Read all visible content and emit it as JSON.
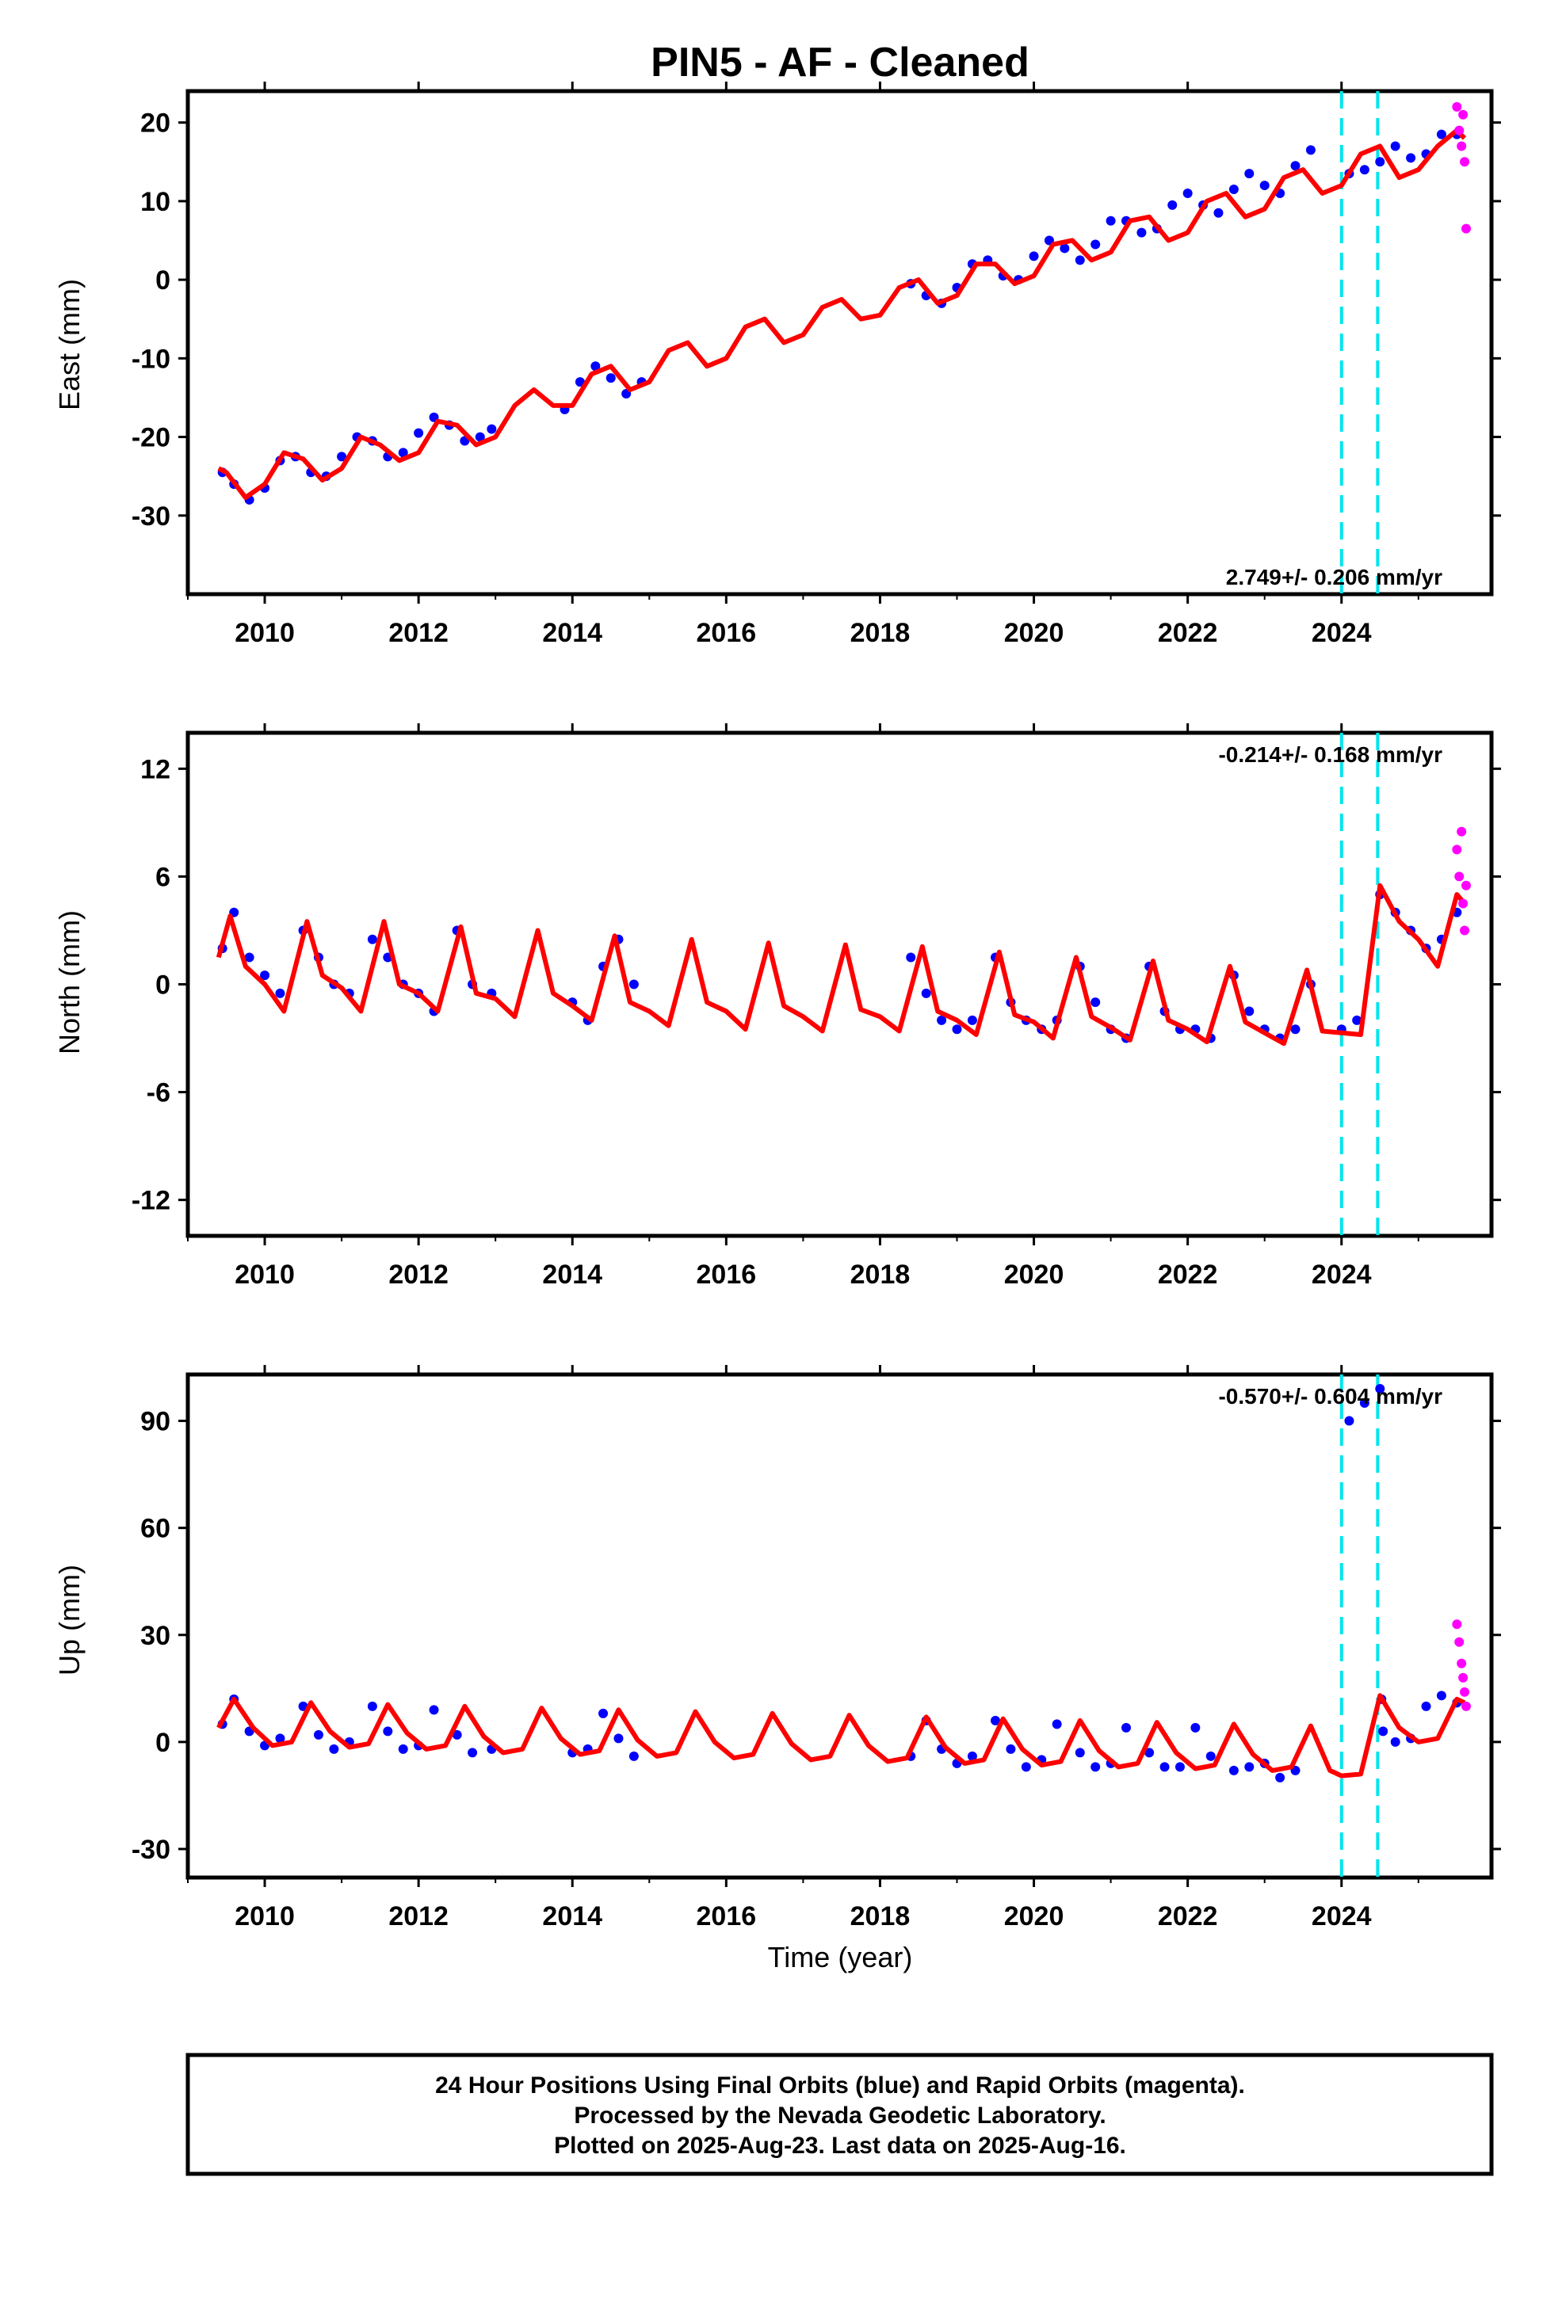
{
  "title": "PIN5  - AF - Cleaned",
  "footer": {
    "line1": "24 Hour Positions Using Final Orbits (blue) and Rapid Orbits (magenta).",
    "line2": "Processed by the Nevada Geodetic Laboratory.",
    "line3": "Plotted on 2025-Aug-23. Last data on 2025-Aug-16."
  },
  "colors": {
    "final": "#0000ff",
    "rapid": "#ff00ff",
    "model": "#ff0000",
    "event": "#00e5ee"
  },
  "chart_data": [
    {
      "type": "scatter",
      "ylabel": "East (mm)",
      "xlabel": "",
      "xlim": [
        2009.0,
        2025.95
      ],
      "ylim": [
        -40,
        24
      ],
      "xticks": [
        "2010",
        "2012",
        "2014",
        "2016",
        "2018",
        "2020",
        "2022",
        "2024"
      ],
      "yticks": [
        "-30",
        "-20",
        "-10",
        "0",
        "10",
        "20"
      ],
      "rate": "2.749+/- 0.206 mm/yr",
      "events": [
        2024.0,
        2024.47
      ],
      "model": {
        "x": [
          2009.4,
          2009.5,
          2009.75,
          2010.0,
          2010.25,
          2010.5,
          2010.75,
          2011.0,
          2011.25,
          2011.5,
          2011.75,
          2012.0,
          2012.25,
          2012.5,
          2012.75,
          2013.0,
          2013.25,
          2013.5,
          2013.75,
          2014.0,
          2014.25,
          2014.5,
          2014.75,
          2015.0,
          2015.25,
          2015.5,
          2015.75,
          2016.0,
          2016.25,
          2016.5,
          2016.75,
          2017.0,
          2017.25,
          2017.5,
          2017.75,
          2018.0,
          2018.25,
          2018.5,
          2018.75,
          2019.0,
          2019.25,
          2019.5,
          2019.75,
          2020.0,
          2020.25,
          2020.5,
          2020.75,
          2021.0,
          2021.25,
          2021.5,
          2021.75,
          2022.0,
          2022.25,
          2022.5,
          2022.75,
          2023.0,
          2023.25,
          2023.5,
          2023.75,
          2024.0,
          2024.25,
          2024.5,
          2024.75,
          2025.0,
          2025.25,
          2025.5,
          2025.6
        ],
        "y": [
          -24.0,
          -24.5,
          -27.7,
          -26.0,
          -22.0,
          -22.8,
          -25.5,
          -24.0,
          -20.0,
          -21.0,
          -23.0,
          -22.0,
          -18.0,
          -18.5,
          -21.0,
          -20.0,
          -16.0,
          -14.0,
          -16.0,
          -16.0,
          -12.0,
          -11.0,
          -14.0,
          -13.0,
          -9.0,
          -8.0,
          -11.0,
          -10.0,
          -6.0,
          -5.0,
          -8.0,
          -7.0,
          -3.5,
          -2.5,
          -5.0,
          -4.5,
          -1.0,
          0.0,
          -3.0,
          -2.0,
          2.0,
          2.0,
          -0.5,
          0.5,
          4.5,
          5.0,
          2.5,
          3.5,
          7.5,
          8.0,
          5.0,
          6.0,
          10.0,
          11.0,
          8.0,
          9.0,
          13.0,
          14.0,
          11.0,
          12.0,
          16.0,
          17.0,
          13.0,
          14.0,
          17.0,
          19.0,
          18.0
        ]
      },
      "final": {
        "x": [
          2009.45,
          2009.6,
          2009.8,
          2010.0,
          2010.2,
          2010.4,
          2010.6,
          2010.8,
          2011.0,
          2011.2,
          2011.4,
          2011.6,
          2011.8,
          2012.0,
          2012.2,
          2012.4,
          2012.6,
          2012.8,
          2012.95,
          2013.9,
          2014.1,
          2014.3,
          2014.5,
          2014.7,
          2014.9,
          2018.4,
          2018.6,
          2018.8,
          2019.0,
          2019.2,
          2019.4,
          2019.6,
          2019.8,
          2020.0,
          2020.2,
          2020.4,
          2020.6,
          2020.8,
          2021.0,
          2021.2,
          2021.4,
          2021.6,
          2021.8,
          2022.0,
          2022.2,
          2022.4,
          2022.6,
          2022.8,
          2023.0,
          2023.2,
          2023.4,
          2023.6,
          2024.1,
          2024.3,
          2024.5,
          2024.7,
          2024.9,
          2025.1,
          2025.3,
          2025.5
        ],
        "y": [
          -24.5,
          -26.0,
          -28.0,
          -26.5,
          -23.0,
          -22.5,
          -24.5,
          -25.0,
          -22.5,
          -20.0,
          -20.5,
          -22.5,
          -22.0,
          -19.5,
          -17.5,
          -18.5,
          -20.5,
          -20.0,
          -19.0,
          -16.5,
          -13.0,
          -11.0,
          -12.5,
          -14.5,
          -13.0,
          -0.5,
          -2.0,
          -3.0,
          -1.0,
          2.0,
          2.5,
          0.5,
          0.0,
          3.0,
          5.0,
          4.0,
          2.5,
          4.5,
          7.5,
          7.5,
          6.0,
          6.5,
          9.5,
          11.0,
          9.5,
          8.5,
          11.5,
          13.5,
          12.0,
          11.0,
          14.5,
          16.5,
          13.5,
          14.0,
          15.0,
          17.0,
          15.5,
          16.0,
          18.5,
          18.5
        ]
      },
      "rapid": {
        "x": [
          2025.5,
          2025.53,
          2025.56,
          2025.58,
          2025.6,
          2025.62
        ],
        "y": [
          22.0,
          19.0,
          17.0,
          21.0,
          15.0,
          6.5
        ]
      }
    },
    {
      "type": "scatter",
      "ylabel": "North (mm)",
      "xlabel": "",
      "xlim": [
        2009.0,
        2025.95
      ],
      "ylim": [
        -14,
        14
      ],
      "xticks": [
        "2010",
        "2012",
        "2014",
        "2016",
        "2018",
        "2020",
        "2022",
        "2024"
      ],
      "yticks": [
        "-12",
        "-6",
        "0",
        "6",
        "12"
      ],
      "rate": "-0.214+/- 0.168 mm/yr",
      "events": [
        2024.0,
        2024.47
      ],
      "model": {
        "x": [
          2009.4,
          2009.55,
          2009.75,
          2010.0,
          2010.25,
          2010.55,
          2010.75,
          2011.0,
          2011.25,
          2011.55,
          2011.75,
          2012.0,
          2012.25,
          2012.55,
          2012.75,
          2013.0,
          2013.25,
          2013.55,
          2013.75,
          2014.0,
          2014.25,
          2014.55,
          2014.75,
          2015.0,
          2015.25,
          2015.55,
          2015.75,
          2016.0,
          2016.25,
          2016.55,
          2016.75,
          2017.0,
          2017.25,
          2017.55,
          2017.75,
          2018.0,
          2018.25,
          2018.55,
          2018.75,
          2019.0,
          2019.25,
          2019.55,
          2019.75,
          2020.0,
          2020.25,
          2020.55,
          2020.75,
          2021.0,
          2021.25,
          2021.55,
          2021.75,
          2022.0,
          2022.25,
          2022.55,
          2022.75,
          2023.0,
          2023.25,
          2023.55,
          2023.75,
          2024.0,
          2024.25,
          2024.5,
          2024.75,
          2025.0,
          2025.25,
          2025.5,
          2025.6
        ],
        "y": [
          1.5,
          3.8,
          1.0,
          0.0,
          -1.5,
          3.5,
          0.5,
          -0.2,
          -1.5,
          3.5,
          0.0,
          -0.5,
          -1.5,
          3.2,
          -0.5,
          -0.8,
          -1.8,
          3.0,
          -0.5,
          -1.2,
          -2.0,
          2.7,
          -1.0,
          -1.5,
          -2.3,
          2.5,
          -1.0,
          -1.5,
          -2.5,
          2.3,
          -1.2,
          -1.8,
          -2.6,
          2.2,
          -1.4,
          -1.8,
          -2.6,
          2.1,
          -1.5,
          -2.0,
          -2.8,
          1.8,
          -1.7,
          -2.1,
          -3.0,
          1.5,
          -1.8,
          -2.4,
          -3.1,
          1.3,
          -2.0,
          -2.5,
          -3.2,
          1.0,
          -2.1,
          -2.7,
          -3.3,
          0.8,
          -2.6,
          -2.7,
          -2.8,
          5.5,
          3.5,
          2.5,
          1.0,
          5.0,
          4.5
        ]
      },
      "final": {
        "x": [
          2009.45,
          2009.6,
          2009.8,
          2010.0,
          2010.2,
          2010.5,
          2010.7,
          2010.9,
          2011.1,
          2011.4,
          2011.6,
          2011.8,
          2012.0,
          2012.2,
          2012.5,
          2012.7,
          2012.95,
          2014.0,
          2014.2,
          2014.4,
          2014.6,
          2014.8,
          2018.4,
          2018.6,
          2018.8,
          2019.0,
          2019.2,
          2019.5,
          2019.7,
          2019.9,
          2020.1,
          2020.3,
          2020.6,
          2020.8,
          2021.0,
          2021.2,
          2021.5,
          2021.7,
          2021.9,
          2022.1,
          2022.3,
          2022.6,
          2022.8,
          2023.0,
          2023.2,
          2023.4,
          2023.6,
          2024.0,
          2024.2,
          2024.5,
          2024.7,
          2024.9,
          2025.1,
          2025.3,
          2025.5
        ],
        "y": [
          2.0,
          4.0,
          1.5,
          0.5,
          -0.5,
          3.0,
          1.5,
          0.0,
          -0.5,
          2.5,
          1.5,
          0.0,
          -0.5,
          -1.5,
          3.0,
          0.0,
          -0.5,
          -1.0,
          -2.0,
          1.0,
          2.5,
          0.0,
          1.5,
          -0.5,
          -2.0,
          -2.5,
          -2.0,
          1.5,
          -1.0,
          -2.0,
          -2.5,
          -2.0,
          1.0,
          -1.0,
          -2.5,
          -3.0,
          1.0,
          -1.5,
          -2.5,
          -2.5,
          -3.0,
          0.5,
          -1.5,
          -2.5,
          -3.0,
          -2.5,
          0.0,
          -2.5,
          -2.0,
          5.0,
          4.0,
          3.0,
          2.0,
          2.5,
          4.0
        ]
      },
      "rapid": {
        "x": [
          2025.5,
          2025.53,
          2025.56,
          2025.58,
          2025.6,
          2025.62
        ],
        "y": [
          7.5,
          6.0,
          8.5,
          4.5,
          3.0,
          5.5
        ]
      }
    },
    {
      "type": "scatter",
      "ylabel": "Up (mm)",
      "xlabel": "Time (year)",
      "xlim": [
        2009.0,
        2025.95
      ],
      "ylim": [
        -38,
        103
      ],
      "xticks": [
        "2010",
        "2012",
        "2014",
        "2016",
        "2018",
        "2020",
        "2022",
        "2024"
      ],
      "yticks": [
        "-30",
        "0",
        "30",
        "60",
        "90"
      ],
      "rate": "-0.570+/- 0.604 mm/yr",
      "events": [
        2024.0,
        2024.47
      ],
      "model": {
        "x": [
          2009.4,
          2009.6,
          2009.85,
          2010.1,
          2010.35,
          2010.6,
          2010.85,
          2011.1,
          2011.35,
          2011.6,
          2011.85,
          2012.1,
          2012.35,
          2012.6,
          2012.85,
          2013.1,
          2013.35,
          2013.6,
          2013.85,
          2014.1,
          2014.35,
          2014.6,
          2014.85,
          2015.1,
          2015.35,
          2015.6,
          2015.85,
          2016.1,
          2016.35,
          2016.6,
          2016.85,
          2017.1,
          2017.35,
          2017.6,
          2017.85,
          2018.1,
          2018.35,
          2018.6,
          2018.85,
          2019.1,
          2019.35,
          2019.6,
          2019.85,
          2020.1,
          2020.35,
          2020.6,
          2020.85,
          2021.1,
          2021.35,
          2021.6,
          2021.85,
          2022.1,
          2022.35,
          2022.6,
          2022.85,
          2023.1,
          2023.35,
          2023.6,
          2023.85,
          2024.0,
          2024.25,
          2024.5,
          2024.75,
          2025.0,
          2025.25,
          2025.5,
          2025.6
        ],
        "y": [
          4.0,
          12.0,
          4.0,
          -1.0,
          0.0,
          11.0,
          3.0,
          -1.5,
          -0.5,
          10.5,
          2.5,
          -2.0,
          -1.0,
          10.0,
          1.5,
          -3.0,
          -2.0,
          9.5,
          1.0,
          -3.5,
          -2.5,
          9.0,
          0.5,
          -4.0,
          -3.0,
          8.5,
          0.0,
          -4.5,
          -3.5,
          8.0,
          -0.5,
          -5.0,
          -4.0,
          7.5,
          -1.0,
          -5.5,
          -4.5,
          7.0,
          -1.5,
          -6.0,
          -5.0,
          6.5,
          -2.0,
          -6.5,
          -5.5,
          6.0,
          -2.5,
          -7.0,
          -6.0,
          5.5,
          -3.0,
          -7.5,
          -6.5,
          5.0,
          -3.5,
          -8.0,
          -7.0,
          4.5,
          -8.0,
          -9.5,
          -9.0,
          13.0,
          4.0,
          0.0,
          1.0,
          12.0,
          11.0
        ]
      },
      "final": {
        "x": [
          2009.45,
          2009.6,
          2009.8,
          2010.0,
          2010.2,
          2010.5,
          2010.7,
          2010.9,
          2011.1,
          2011.4,
          2011.6,
          2011.8,
          2012.0,
          2012.2,
          2012.5,
          2012.7,
          2012.95,
          2014.0,
          2014.2,
          2014.4,
          2014.6,
          2014.8,
          2018.4,
          2018.6,
          2018.8,
          2019.0,
          2019.2,
          2019.5,
          2019.7,
          2019.9,
          2020.1,
          2020.3,
          2020.6,
          2020.8,
          2021.0,
          2021.2,
          2021.5,
          2021.7,
          2021.9,
          2022.1,
          2022.3,
          2022.6,
          2022.8,
          2023.0,
          2023.2,
          2023.4,
          2024.1,
          2024.3,
          2024.5,
          2024.52,
          2024.54,
          2024.7,
          2024.9,
          2025.1,
          2025.3,
          2025.5
        ],
        "y": [
          5.0,
          12.0,
          3.0,
          -1.0,
          1.0,
          10.0,
          2.0,
          -2.0,
          0.0,
          10.0,
          3.0,
          -2.0,
          -1.0,
          9.0,
          2.0,
          -3.0,
          -2.0,
          -3.0,
          -2.0,
          8.0,
          1.0,
          -4.0,
          -4.0,
          6.0,
          -2.0,
          -6.0,
          -4.0,
          6.0,
          -2.0,
          -7.0,
          -5.0,
          5.0,
          -3.0,
          -7.0,
          -6.0,
          4.0,
          -3.0,
          -7.0,
          -7.0,
          4.0,
          -4.0,
          -8.0,
          -7.0,
          -6.0,
          -10.0,
          -8.0,
          90.0,
          95.0,
          99.0,
          12.0,
          3.0,
          0.0,
          1.0,
          10.0,
          13.0,
          11.0
        ]
      },
      "rapid": {
        "x": [
          2025.5,
          2025.53,
          2025.56,
          2025.58,
          2025.6,
          2025.62
        ],
        "y": [
          33.0,
          28.0,
          22.0,
          18.0,
          14.0,
          10.0
        ]
      }
    }
  ]
}
